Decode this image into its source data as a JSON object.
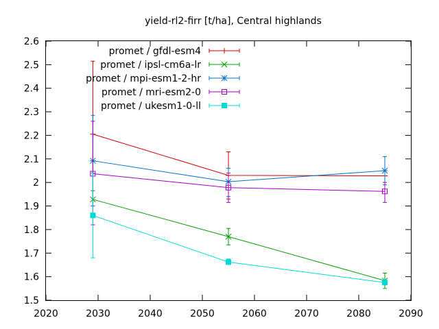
{
  "chart_data": {
    "type": "line",
    "title": "yield-rl2-firr [t/ha], Central highlands",
    "xlabel": "",
    "ylabel": "",
    "xlim": [
      2020,
      2090
    ],
    "ylim": [
      1.5,
      2.6
    ],
    "xticks": [
      "2020",
      "2030",
      "2040",
      "2050",
      "2060",
      "2070",
      "2080",
      "2090"
    ],
    "yticks": [
      "1.5",
      "1.6",
      "1.7",
      "1.8",
      "1.9",
      "2",
      "2.1",
      "2.2",
      "2.3",
      "2.4",
      "2.5",
      "2.6"
    ],
    "grid": false,
    "legend_position": "top-left",
    "x": [
      2029,
      2055,
      2085
    ],
    "series": [
      {
        "name": "promet / gfdl-esm4",
        "color": "#d00000",
        "marker": "plus",
        "values": [
          2.205,
          2.03,
          2.028
        ],
        "err_low": [
          1.9,
          1.93,
          2.028
        ],
        "err_high": [
          2.515,
          2.13,
          2.028
        ]
      },
      {
        "name": "promet / ipsl-cm6a-lr",
        "color": "#00a000",
        "marker": "cross",
        "values": [
          1.928,
          1.77,
          1.583
        ],
        "err_low": [
          1.87,
          1.735,
          1.55
        ],
        "err_high": [
          1.965,
          1.805,
          1.615
        ]
      },
      {
        "name": "promet / mpi-esm1-2-hr",
        "color": "#0070c8",
        "marker": "star",
        "values": [
          2.092,
          2.003,
          2.05
        ],
        "err_low": [
          1.9,
          1.94,
          1.99
        ],
        "err_high": [
          2.285,
          2.06,
          2.11
        ]
      },
      {
        "name": "promet / mri-esm2-0",
        "color": "#a000c0",
        "marker": "box",
        "values": [
          2.037,
          1.978,
          1.962
        ],
        "err_low": [
          1.82,
          1.915,
          1.915
        ],
        "err_high": [
          2.26,
          2.04,
          2.0
        ]
      },
      {
        "name": "promet / ukesm1-0-ll",
        "color": "#00d8d8",
        "marker": "filled-box",
        "values": [
          1.86,
          1.662,
          1.575
        ],
        "err_low": [
          1.68,
          1.652,
          1.565
        ],
        "err_high": [
          2.04,
          1.675,
          1.59
        ]
      }
    ]
  }
}
